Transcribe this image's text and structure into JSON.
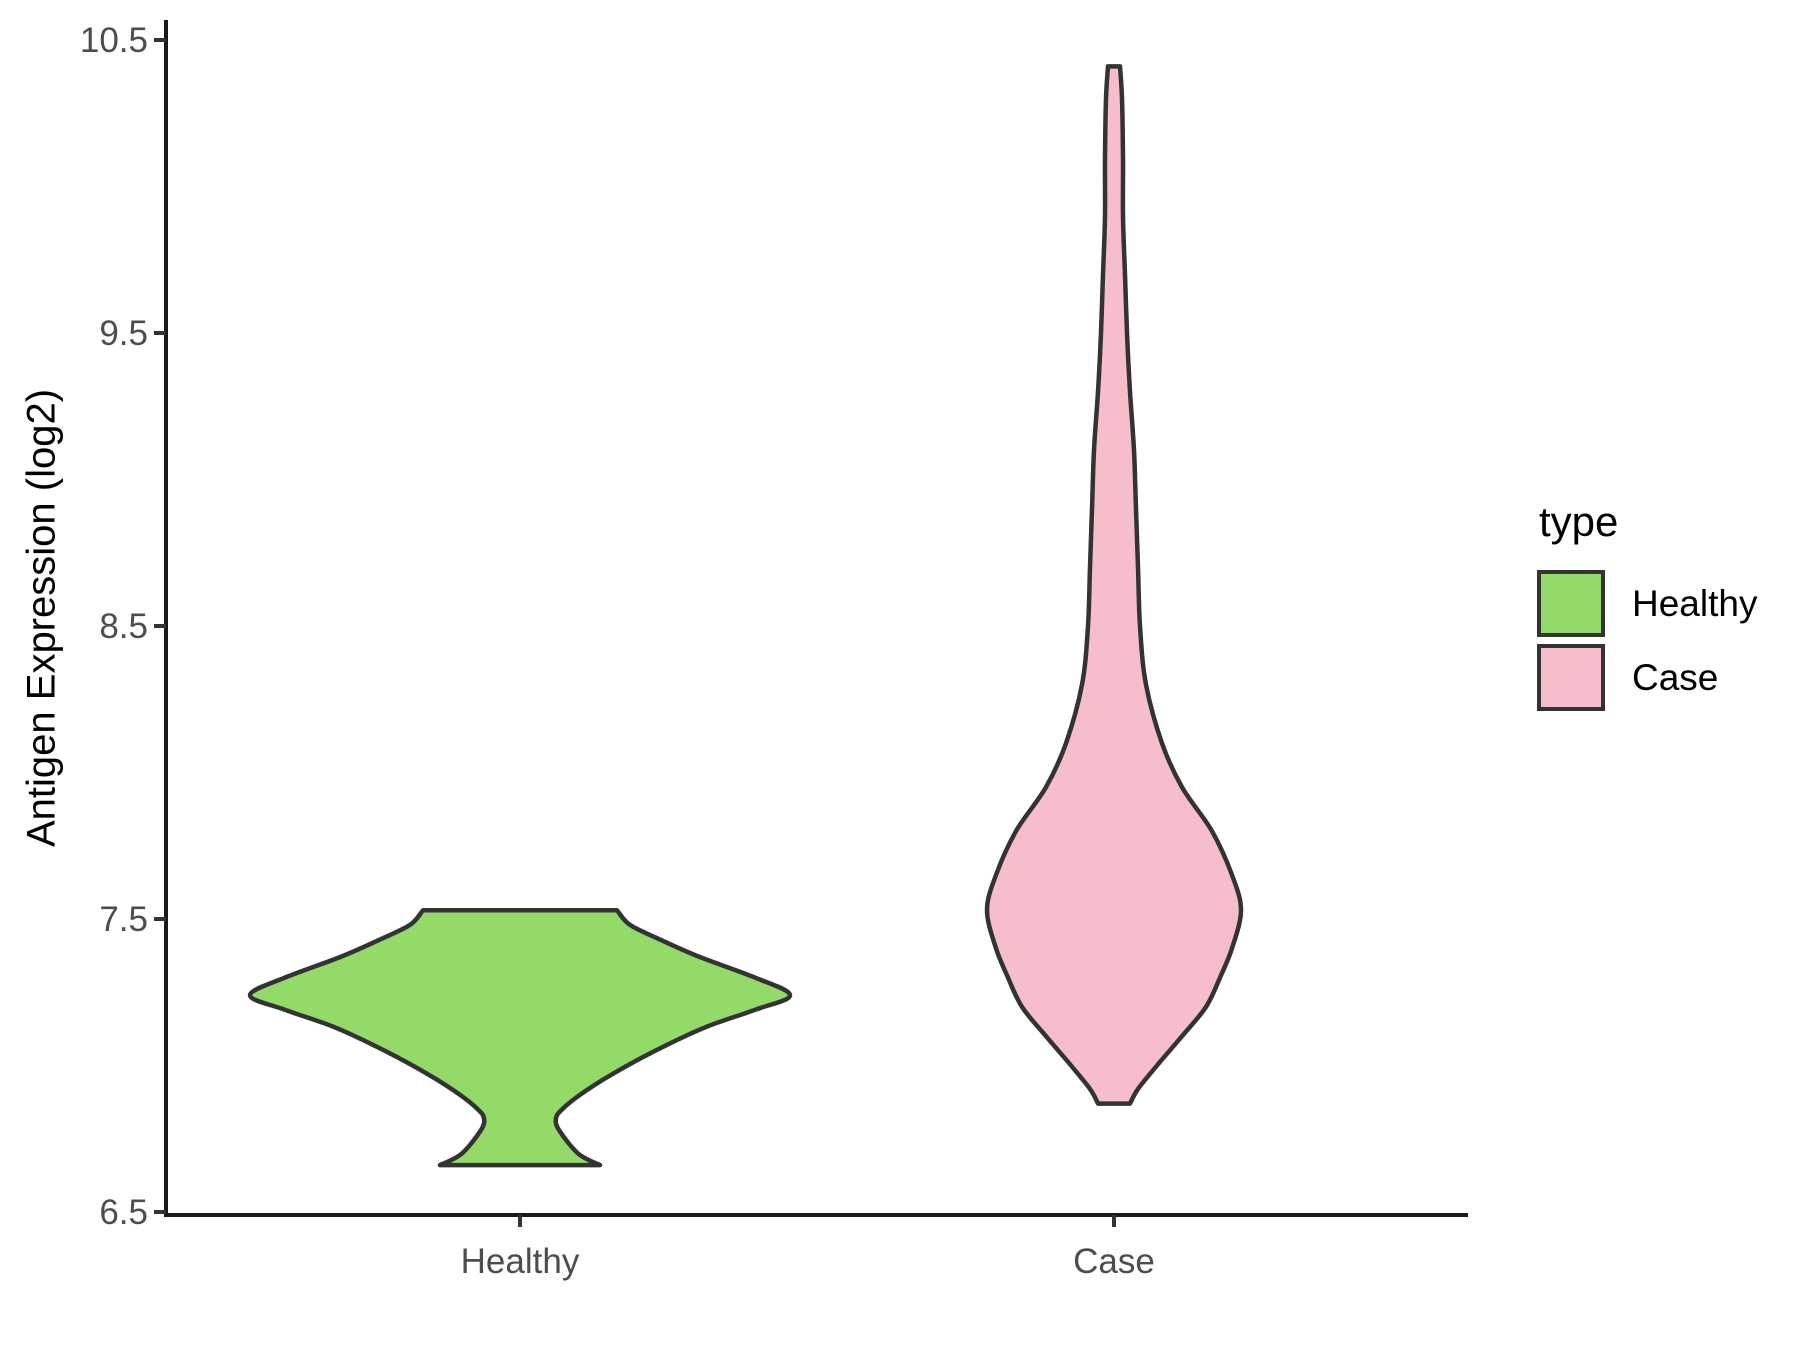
{
  "figure": {
    "background": "#FFFFFF"
  },
  "chart_data": {
    "type": "violin",
    "title": "",
    "xlabel": "",
    "ylabel": "Antigen Expression (log2)",
    "categories": [
      "Healthy",
      "Case"
    ],
    "y_ticks": [
      "6.5",
      "7.5",
      "8.5",
      "9.5",
      "10.5"
    ],
    "ylim": [
      6.45,
      10.62
    ],
    "grid": "off",
    "legend_position": "right",
    "series": [
      {
        "name": "Healthy",
        "fill": "#93DA68",
        "outline": "#333333",
        "value_range": [
          6.66,
          7.53
        ],
        "widest_at": 7.24,
        "shape_notes": "flat truncated top at 7.53, widest bulge at 7.24, narrow waist at 6.82, flared flat base at 6.66",
        "profile": [
          [
            7.53,
            97
          ],
          [
            7.48,
            110
          ],
          [
            7.43,
            140
          ],
          [
            7.37,
            180
          ],
          [
            7.3,
            235
          ],
          [
            7.24,
            270
          ],
          [
            7.19,
            235
          ],
          [
            7.13,
            185
          ],
          [
            7.05,
            135
          ],
          [
            6.97,
            92
          ],
          [
            6.9,
            60
          ],
          [
            6.85,
            42
          ],
          [
            6.82,
            36
          ],
          [
            6.78,
            39
          ],
          [
            6.7,
            58
          ],
          [
            6.66,
            80
          ]
        ]
      },
      {
        "name": "Case",
        "fill": "#F6BDCB",
        "outline": "#333333",
        "value_range": [
          6.87,
          10.41
        ],
        "widest_at": 7.53,
        "shape_notes": "long thin upper tail to 10.41, teardrop bulge widest at 7.53, short flat base at 6.87",
        "profile": [
          [
            10.41,
            6
          ],
          [
            10.3,
            8
          ],
          [
            10.1,
            9
          ],
          [
            9.9,
            9
          ],
          [
            9.7,
            11
          ],
          [
            9.5,
            13
          ],
          [
            9.3,
            16
          ],
          [
            9.1,
            20
          ],
          [
            8.9,
            22
          ],
          [
            8.7,
            24
          ],
          [
            8.5,
            26
          ],
          [
            8.3,
            32
          ],
          [
            8.1,
            48
          ],
          [
            7.95,
            68
          ],
          [
            7.8,
            98
          ],
          [
            7.65,
            118
          ],
          [
            7.53,
            127
          ],
          [
            7.4,
            118
          ],
          [
            7.3,
            106
          ],
          [
            7.2,
            92
          ],
          [
            7.1,
            68
          ],
          [
            7.0,
            43
          ],
          [
            6.92,
            24
          ],
          [
            6.87,
            16
          ]
        ]
      }
    ]
  },
  "legend": {
    "title": "type",
    "items": [
      {
        "label": "Healthy",
        "color": "#93DA68"
      },
      {
        "label": "Case",
        "color": "#F6BDCB"
      }
    ]
  },
  "axes": {
    "axis_line_color": "#1A1A1A",
    "tick_mark_color": "#333333",
    "tick_label_color": "#4D4D4D",
    "title_color": "#000000"
  }
}
